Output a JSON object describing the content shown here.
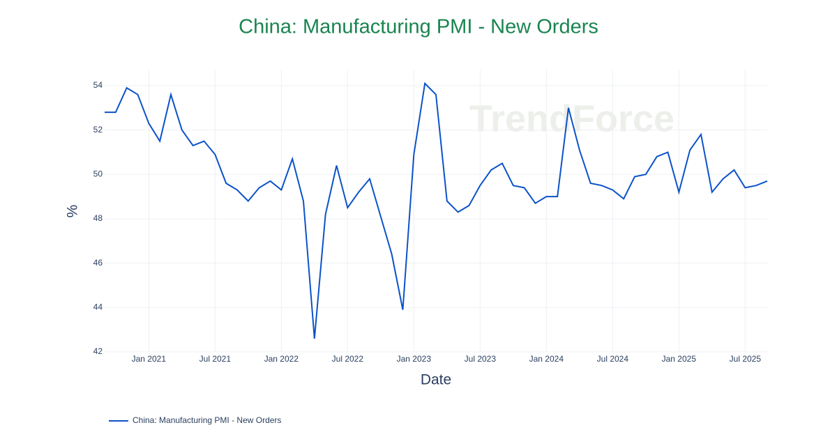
{
  "chart_data": {
    "type": "line",
    "title": "China: Manufacturing PMI - New Orders",
    "x_label": "Date",
    "y_label": "%",
    "watermark": "TrendForce",
    "x": [
      "2020-09",
      "2020-10",
      "2020-11",
      "2020-12",
      "2021-01",
      "2021-02",
      "2021-03",
      "2021-04",
      "2021-05",
      "2021-06",
      "2021-07",
      "2021-08",
      "2021-09",
      "2021-10",
      "2021-11",
      "2021-12",
      "2022-01",
      "2022-02",
      "2022-03",
      "2022-04",
      "2022-05",
      "2022-06",
      "2022-07",
      "2022-08",
      "2022-09",
      "2022-10",
      "2022-11",
      "2022-12",
      "2023-01",
      "2023-02",
      "2023-03",
      "2023-04",
      "2023-05",
      "2023-06",
      "2023-07",
      "2023-08",
      "2023-09",
      "2023-10",
      "2023-11",
      "2023-12",
      "2024-01",
      "2024-02",
      "2024-03",
      "2024-04",
      "2024-05",
      "2024-06",
      "2024-07",
      "2024-08",
      "2024-09",
      "2024-10",
      "2024-11",
      "2024-12",
      "2025-01",
      "2025-02",
      "2025-03",
      "2025-04",
      "2025-05",
      "2025-06",
      "2025-07",
      "2025-08",
      "2025-09"
    ],
    "series": [
      {
        "name": "China: Manufacturing PMI - New Orders",
        "color": "#0b52c9",
        "values": [
          52.8,
          52.8,
          53.9,
          53.6,
          52.3,
          51.5,
          53.6,
          52.0,
          51.3,
          51.5,
          50.9,
          49.6,
          49.3,
          48.8,
          49.4,
          49.7,
          49.3,
          50.7,
          48.8,
          42.6,
          48.2,
          50.4,
          48.5,
          49.2,
          49.8,
          48.1,
          46.4,
          43.9,
          50.9,
          54.1,
          53.6,
          48.8,
          48.3,
          48.6,
          49.5,
          50.2,
          50.5,
          49.5,
          49.4,
          48.7,
          49.0,
          49.0,
          53.0,
          51.1,
          49.6,
          49.5,
          49.3,
          48.9,
          49.9,
          50.0,
          50.8,
          51.0,
          49.2,
          51.1,
          51.8,
          49.2,
          49.8,
          50.2,
          49.4,
          49.5,
          49.7
        ]
      }
    ],
    "xlim": [
      "2020-09",
      "2025-09"
    ],
    "xticks": [
      {
        "value": "2021-01",
        "label": "Jan 2021"
      },
      {
        "value": "2021-07",
        "label": "Jul 2021"
      },
      {
        "value": "2022-01",
        "label": "Jan 2022"
      },
      {
        "value": "2022-07",
        "label": "Jul 2022"
      },
      {
        "value": "2023-01",
        "label": "Jan 2023"
      },
      {
        "value": "2023-07",
        "label": "Jul 2023"
      },
      {
        "value": "2024-01",
        "label": "Jan 2024"
      },
      {
        "value": "2024-07",
        "label": "Jul 2024"
      },
      {
        "value": "2025-01",
        "label": "Jan 2025"
      },
      {
        "value": "2025-07",
        "label": "Jul 2025"
      }
    ],
    "ylim": [
      42,
      54.72
    ],
    "yticks": [
      42,
      44,
      46,
      48,
      50,
      52,
      54
    ],
    "grid": true,
    "legend": "bottom-left"
  }
}
